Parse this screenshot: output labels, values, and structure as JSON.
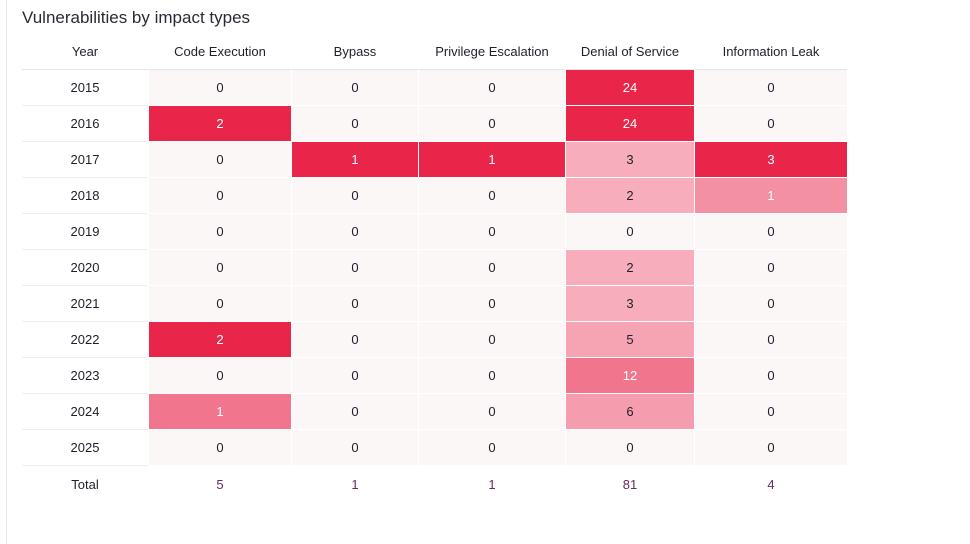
{
  "title": "Vulnerabilities by impact types",
  "colors": {
    "empty": "#fbf7f7",
    "scale_low": "#f9c5cf",
    "scale_high": "#e9264a",
    "light_text": "#ffffff",
    "dark_text": "#1f1f2b",
    "total_text": "#6a2a5a"
  },
  "chart_data": {
    "type": "heatmap",
    "title": "Vulnerabilities by impact types",
    "row_header": "Year",
    "columns": [
      "Code Execution",
      "Bypass",
      "Privilege Escalation",
      "Denial of Service",
      "Information Leak"
    ],
    "rows": [
      "2015",
      "2016",
      "2017",
      "2018",
      "2019",
      "2020",
      "2021",
      "2022",
      "2023",
      "2024",
      "2025"
    ],
    "values": [
      [
        0,
        0,
        0,
        24,
        0
      ],
      [
        2,
        0,
        0,
        24,
        0
      ],
      [
        0,
        1,
        1,
        3,
        3
      ],
      [
        0,
        0,
        0,
        2,
        1
      ],
      [
        0,
        0,
        0,
        0,
        0
      ],
      [
        0,
        0,
        0,
        2,
        0
      ],
      [
        0,
        0,
        0,
        3,
        0
      ],
      [
        2,
        0,
        0,
        5,
        0
      ],
      [
        0,
        0,
        0,
        12,
        0
      ],
      [
        1,
        0,
        0,
        6,
        0
      ],
      [
        0,
        0,
        0,
        0,
        0
      ]
    ],
    "total_label": "Total",
    "totals": [
      5,
      1,
      1,
      81,
      4
    ]
  }
}
